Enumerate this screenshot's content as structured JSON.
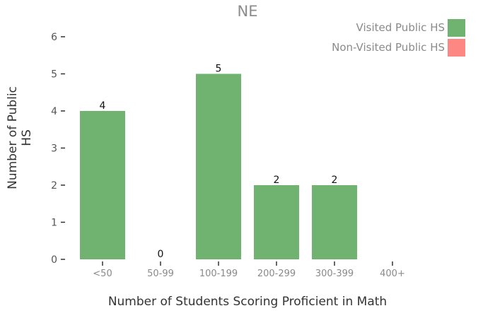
{
  "chart_data": {
    "type": "bar",
    "title": "NE",
    "xlabel": "Number of Students Scoring Proficient in Math",
    "ylabel": "Number of Public HS",
    "categories": [
      "<50",
      "50-99",
      "100-199",
      "200-299",
      "300-399",
      "400+"
    ],
    "series": [
      {
        "name": "Visited Public HS",
        "color": "#70b26f",
        "values": [
          4,
          0,
          5,
          2,
          2,
          null
        ]
      },
      {
        "name": "Non-Visited Public HS",
        "color": "#fd8782",
        "values": [
          null,
          null,
          null,
          null,
          null,
          null
        ]
      }
    ],
    "data_labels": [
      "4",
      "0",
      "5",
      "2",
      "2",
      ""
    ],
    "y_ticks": [
      0,
      1,
      2,
      3,
      4,
      5,
      6
    ],
    "ylim": [
      0,
      6
    ],
    "grid": false,
    "legend_position": "top-right"
  }
}
